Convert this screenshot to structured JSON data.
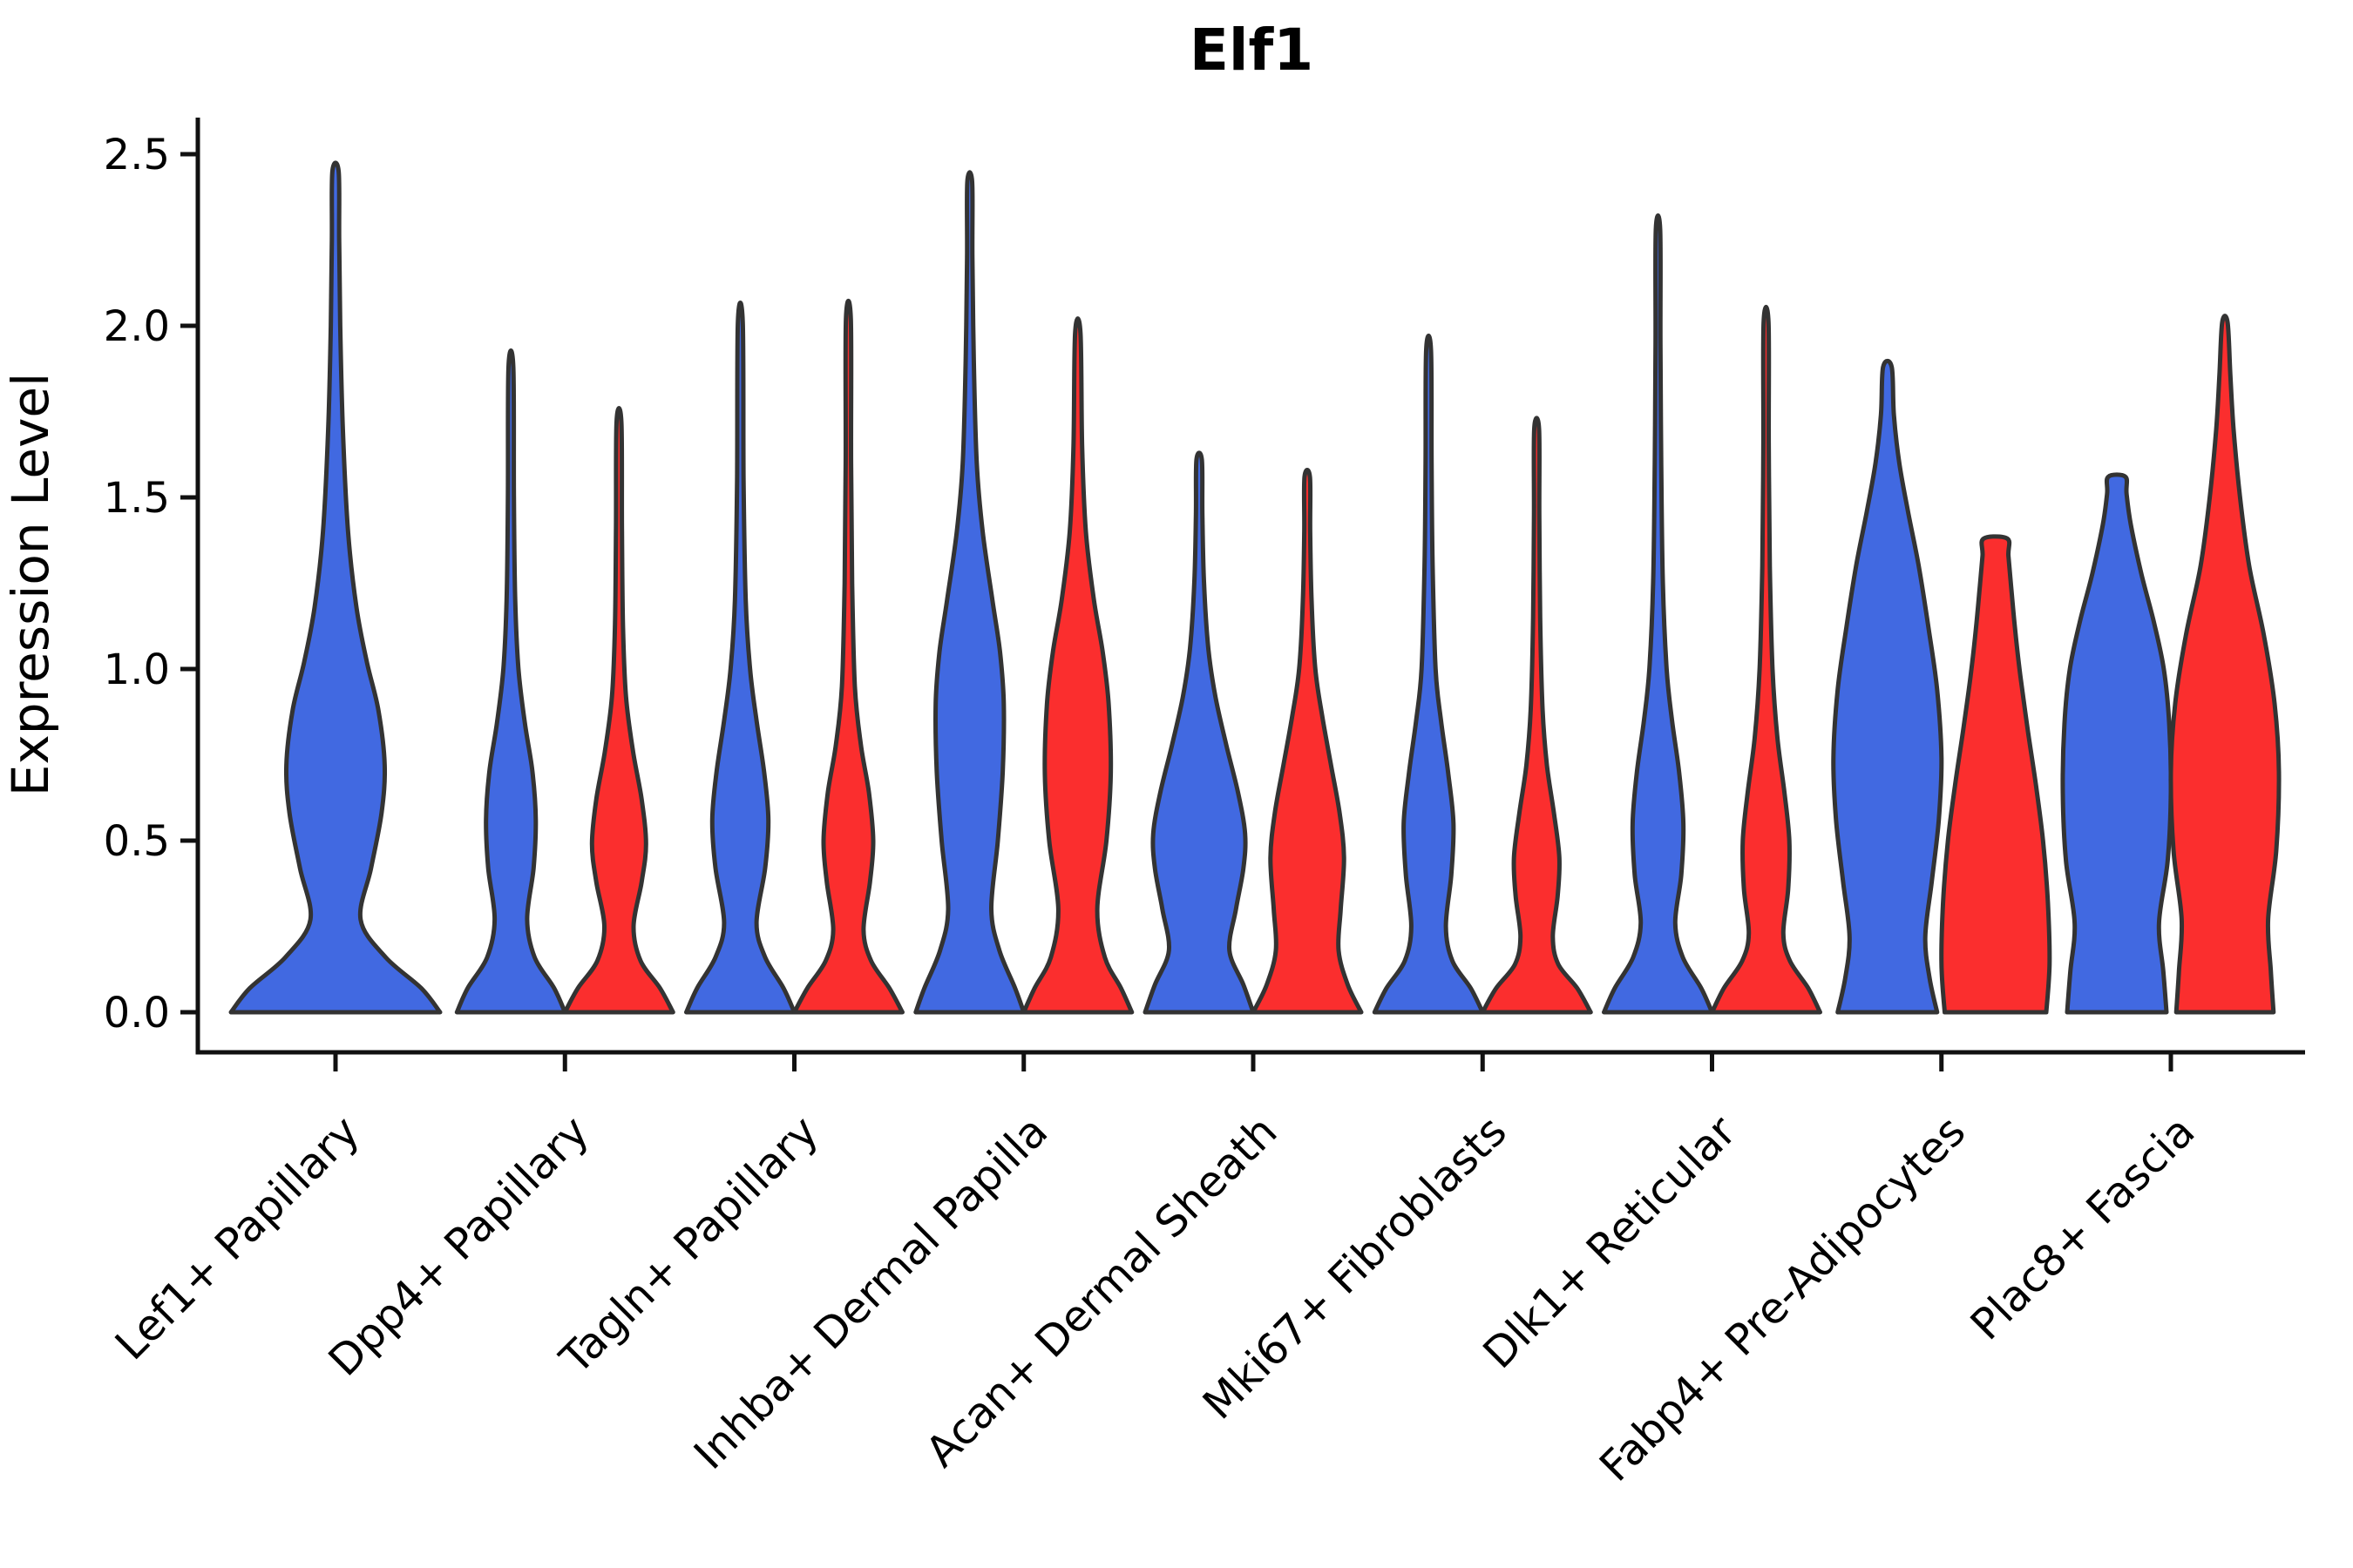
{
  "chart_data": {
    "type": "violin",
    "title": "Elf1",
    "ylabel": "Expression Level",
    "ylim": [
      0,
      2.5
    ],
    "yticks": [
      "0.0",
      "0.5",
      "1.0",
      "1.5",
      "2.0",
      "2.5"
    ],
    "grid": false,
    "legend": "none",
    "categories": [
      "Lef1+ Papillary",
      "Dpp4+ Papillary",
      "Tagln+ Papillary",
      "Inhba+ Dermal Papilla",
      "Acan+ Dermal Sheath",
      "Mki67+ Fibroblasts",
      "Dlk1+ Reticular",
      "Fabp4+ Pre-Adipocytes",
      "Plac8+ Fascia"
    ],
    "colors": {
      "blue": "#4169E1",
      "red": "#FB2E2E",
      "outline": "#333333",
      "axis": "#111111"
    },
    "violins": [
      {
        "category_index": 0,
        "group": "blue",
        "offset": 0,
        "half_width": 120,
        "max": 2.45,
        "profile": [
          [
            0,
            1.0
          ],
          [
            0.07,
            0.82
          ],
          [
            0.16,
            0.48
          ],
          [
            0.27,
            0.24
          ],
          [
            0.42,
            0.34
          ],
          [
            0.58,
            0.44
          ],
          [
            0.72,
            0.47
          ],
          [
            0.88,
            0.41
          ],
          [
            1.02,
            0.3
          ],
          [
            1.18,
            0.2
          ],
          [
            1.4,
            0.12
          ],
          [
            1.7,
            0.07
          ],
          [
            2.0,
            0.045
          ],
          [
            2.25,
            0.035
          ],
          [
            2.45,
            0.03
          ]
        ]
      },
      {
        "category_index": 1,
        "group": "blue",
        "offset": -62,
        "half_width": 62,
        "max": 1.88,
        "profile": [
          [
            0,
            1.0
          ],
          [
            0.07,
            0.8
          ],
          [
            0.16,
            0.44
          ],
          [
            0.27,
            0.3
          ],
          [
            0.42,
            0.42
          ],
          [
            0.56,
            0.46
          ],
          [
            0.7,
            0.4
          ],
          [
            0.84,
            0.26
          ],
          [
            1.0,
            0.14
          ],
          [
            1.2,
            0.08
          ],
          [
            1.5,
            0.055
          ],
          [
            1.88,
            0.045
          ]
        ]
      },
      {
        "category_index": 1,
        "group": "red",
        "offset": 62,
        "half_width": 62,
        "max": 1.72,
        "profile": [
          [
            0,
            1.0
          ],
          [
            0.07,
            0.76
          ],
          [
            0.15,
            0.4
          ],
          [
            0.25,
            0.27
          ],
          [
            0.38,
            0.42
          ],
          [
            0.49,
            0.5
          ],
          [
            0.62,
            0.42
          ],
          [
            0.76,
            0.26
          ],
          [
            0.92,
            0.13
          ],
          [
            1.12,
            0.075
          ],
          [
            1.4,
            0.055
          ],
          [
            1.72,
            0.045
          ]
        ]
      },
      {
        "category_index": 2,
        "group": "blue",
        "offset": -62,
        "half_width": 62,
        "max": 2.01,
        "profile": [
          [
            0,
            1.0
          ],
          [
            0.07,
            0.8
          ],
          [
            0.16,
            0.46
          ],
          [
            0.26,
            0.3
          ],
          [
            0.42,
            0.46
          ],
          [
            0.56,
            0.52
          ],
          [
            0.7,
            0.44
          ],
          [
            0.85,
            0.3
          ],
          [
            1.0,
            0.18
          ],
          [
            1.2,
            0.1
          ],
          [
            1.55,
            0.06
          ],
          [
            2.01,
            0.045
          ]
        ]
      },
      {
        "category_index": 2,
        "group": "red",
        "offset": 62,
        "half_width": 62,
        "max": 2.02,
        "profile": [
          [
            0,
            1.0
          ],
          [
            0.07,
            0.76
          ],
          [
            0.15,
            0.42
          ],
          [
            0.24,
            0.28
          ],
          [
            0.38,
            0.4
          ],
          [
            0.5,
            0.46
          ],
          [
            0.64,
            0.38
          ],
          [
            0.78,
            0.23
          ],
          [
            0.95,
            0.12
          ],
          [
            1.25,
            0.07
          ],
          [
            1.6,
            0.05
          ],
          [
            2.02,
            0.045
          ]
        ]
      },
      {
        "category_index": 3,
        "group": "blue",
        "offset": -62,
        "half_width": 62,
        "max": 2.42,
        "profile": [
          [
            0,
            1.0
          ],
          [
            0.07,
            0.84
          ],
          [
            0.18,
            0.55
          ],
          [
            0.3,
            0.4
          ],
          [
            0.5,
            0.52
          ],
          [
            0.7,
            0.61
          ],
          [
            0.9,
            0.63
          ],
          [
            1.05,
            0.56
          ],
          [
            1.2,
            0.42
          ],
          [
            1.4,
            0.24
          ],
          [
            1.6,
            0.13
          ],
          [
            1.9,
            0.075
          ],
          [
            2.2,
            0.05
          ],
          [
            2.42,
            0.045
          ]
        ]
      },
      {
        "category_index": 3,
        "group": "red",
        "offset": 62,
        "half_width": 62,
        "max": 1.98,
        "profile": [
          [
            0,
            1.0
          ],
          [
            0.07,
            0.8
          ],
          [
            0.16,
            0.5
          ],
          [
            0.3,
            0.36
          ],
          [
            0.5,
            0.53
          ],
          [
            0.7,
            0.61
          ],
          [
            0.9,
            0.57
          ],
          [
            1.05,
            0.46
          ],
          [
            1.2,
            0.3
          ],
          [
            1.4,
            0.15
          ],
          [
            1.65,
            0.08
          ],
          [
            1.98,
            0.05
          ]
        ]
      },
      {
        "category_index": 4,
        "group": "blue",
        "offset": -62,
        "half_width": 62,
        "max": 1.61,
        "profile": [
          [
            0,
            1.0
          ],
          [
            0.08,
            0.82
          ],
          [
            0.18,
            0.56
          ],
          [
            0.3,
            0.68
          ],
          [
            0.42,
            0.82
          ],
          [
            0.52,
            0.85
          ],
          [
            0.64,
            0.72
          ],
          [
            0.78,
            0.5
          ],
          [
            0.92,
            0.3
          ],
          [
            1.06,
            0.17
          ],
          [
            1.25,
            0.09
          ],
          [
            1.45,
            0.06
          ],
          [
            1.61,
            0.05
          ]
        ]
      },
      {
        "category_index": 4,
        "group": "red",
        "offset": 62,
        "half_width": 62,
        "max": 1.56,
        "profile": [
          [
            0,
            1.0
          ],
          [
            0.08,
            0.75
          ],
          [
            0.18,
            0.58
          ],
          [
            0.3,
            0.62
          ],
          [
            0.45,
            0.68
          ],
          [
            0.58,
            0.6
          ],
          [
            0.72,
            0.44
          ],
          [
            0.86,
            0.28
          ],
          [
            1.0,
            0.15
          ],
          [
            1.2,
            0.08
          ],
          [
            1.4,
            0.055
          ],
          [
            1.56,
            0.05
          ]
        ]
      },
      {
        "category_index": 5,
        "group": "blue",
        "offset": -62,
        "half_width": 62,
        "max": 1.93,
        "profile": [
          [
            0,
            1.0
          ],
          [
            0.07,
            0.78
          ],
          [
            0.15,
            0.44
          ],
          [
            0.25,
            0.32
          ],
          [
            0.4,
            0.42
          ],
          [
            0.55,
            0.46
          ],
          [
            0.7,
            0.36
          ],
          [
            0.85,
            0.23
          ],
          [
            1.0,
            0.13
          ],
          [
            1.3,
            0.075
          ],
          [
            1.6,
            0.055
          ],
          [
            1.93,
            0.045
          ]
        ]
      },
      {
        "category_index": 5,
        "group": "red",
        "offset": 62,
        "half_width": 62,
        "max": 1.7,
        "profile": [
          [
            0,
            1.0
          ],
          [
            0.07,
            0.75
          ],
          [
            0.14,
            0.4
          ],
          [
            0.22,
            0.3
          ],
          [
            0.34,
            0.39
          ],
          [
            0.45,
            0.42
          ],
          [
            0.58,
            0.32
          ],
          [
            0.72,
            0.19
          ],
          [
            0.88,
            0.11
          ],
          [
            1.15,
            0.065
          ],
          [
            1.45,
            0.05
          ],
          [
            1.7,
            0.045
          ]
        ]
      },
      {
        "category_index": 6,
        "group": "blue",
        "offset": -62,
        "half_width": 62,
        "max": 2.28,
        "profile": [
          [
            0,
            1.0
          ],
          [
            0.07,
            0.8
          ],
          [
            0.16,
            0.46
          ],
          [
            0.26,
            0.32
          ],
          [
            0.4,
            0.43
          ],
          [
            0.55,
            0.47
          ],
          [
            0.7,
            0.39
          ],
          [
            0.85,
            0.26
          ],
          [
            1.0,
            0.16
          ],
          [
            1.25,
            0.09
          ],
          [
            1.6,
            0.06
          ],
          [
            1.95,
            0.045
          ],
          [
            2.28,
            0.04
          ]
        ]
      },
      {
        "category_index": 6,
        "group": "red",
        "offset": 62,
        "half_width": 62,
        "max": 2.01,
        "profile": [
          [
            0,
            1.0
          ],
          [
            0.07,
            0.78
          ],
          [
            0.15,
            0.44
          ],
          [
            0.23,
            0.32
          ],
          [
            0.36,
            0.41
          ],
          [
            0.5,
            0.43
          ],
          [
            0.64,
            0.34
          ],
          [
            0.8,
            0.21
          ],
          [
            1.0,
            0.12
          ],
          [
            1.3,
            0.07
          ],
          [
            1.65,
            0.05
          ],
          [
            2.01,
            0.045
          ]
        ]
      },
      {
        "category_index": 7,
        "group": "blue",
        "offset": -62,
        "half_width": 62,
        "max": 1.88,
        "profile": [
          [
            0,
            0.92
          ],
          [
            0.1,
            0.78
          ],
          [
            0.22,
            0.7
          ],
          [
            0.38,
            0.82
          ],
          [
            0.56,
            0.95
          ],
          [
            0.74,
            1.0
          ],
          [
            0.94,
            0.92
          ],
          [
            1.12,
            0.76
          ],
          [
            1.3,
            0.58
          ],
          [
            1.46,
            0.38
          ],
          [
            1.6,
            0.22
          ],
          [
            1.74,
            0.12
          ],
          [
            1.88,
            0.08
          ]
        ]
      },
      {
        "category_index": 7,
        "group": "red",
        "offset": 62,
        "half_width": 62,
        "max": 1.38,
        "profile": [
          [
            0,
            0.94
          ],
          [
            0.14,
            1.0
          ],
          [
            0.32,
            0.97
          ],
          [
            0.5,
            0.88
          ],
          [
            0.66,
            0.75
          ],
          [
            0.82,
            0.6
          ],
          [
            0.98,
            0.46
          ],
          [
            1.12,
            0.36
          ],
          [
            1.24,
            0.29
          ],
          [
            1.33,
            0.24
          ],
          [
            1.38,
            0.22
          ]
        ]
      },
      {
        "category_index": 8,
        "group": "blue",
        "offset": -62,
        "half_width": 62,
        "max": 1.56,
        "profile": [
          [
            0,
            0.92
          ],
          [
            0.12,
            0.86
          ],
          [
            0.26,
            0.78
          ],
          [
            0.44,
            0.94
          ],
          [
            0.64,
            1.0
          ],
          [
            0.84,
            0.97
          ],
          [
            1.0,
            0.87
          ],
          [
            1.14,
            0.68
          ],
          [
            1.28,
            0.45
          ],
          [
            1.42,
            0.26
          ],
          [
            1.51,
            0.18
          ],
          [
            1.56,
            0.16
          ]
        ]
      },
      {
        "category_index": 8,
        "group": "red",
        "offset": 62,
        "half_width": 62,
        "max": 2.01,
        "profile": [
          [
            0,
            0.9
          ],
          [
            0.12,
            0.85
          ],
          [
            0.27,
            0.8
          ],
          [
            0.47,
            0.95
          ],
          [
            0.7,
            1.0
          ],
          [
            0.9,
            0.92
          ],
          [
            1.1,
            0.72
          ],
          [
            1.3,
            0.45
          ],
          [
            1.5,
            0.28
          ],
          [
            1.7,
            0.16
          ],
          [
            1.86,
            0.1
          ],
          [
            2.01,
            0.05
          ]
        ]
      }
    ]
  }
}
